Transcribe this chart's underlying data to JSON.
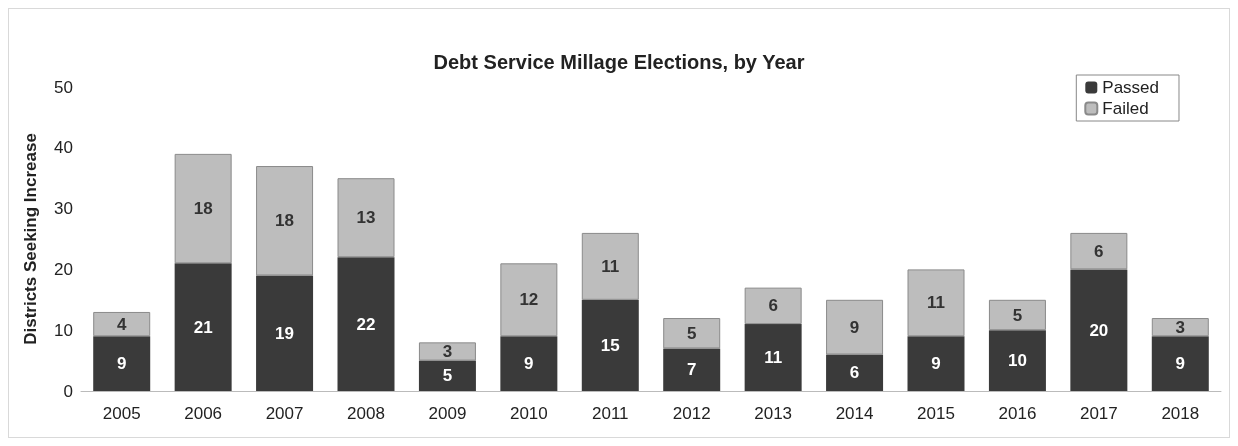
{
  "chart_data": {
    "type": "bar",
    "title": "Debt Service Millage Elections, by Year",
    "ylabel": "Districts Seeking Increase",
    "categories": [
      "2005",
      "2006",
      "2007",
      "2008",
      "2009",
      "2010",
      "2011",
      "2012",
      "2013",
      "2014",
      "2015",
      "2016",
      "2017",
      "2018"
    ],
    "series": [
      {
        "name": "Passed",
        "color": "#3a3a3a",
        "values": [
          9,
          21,
          19,
          22,
          5,
          9,
          15,
          7,
          11,
          6,
          9,
          10,
          20,
          9
        ]
      },
      {
        "name": "Failed",
        "color": "#bdbdbd",
        "values": [
          4,
          18,
          18,
          13,
          3,
          12,
          11,
          5,
          6,
          9,
          11,
          5,
          6,
          3
        ]
      }
    ],
    "stacked": true,
    "ylim": [
      0,
      50
    ],
    "yticks": [
      0,
      10,
      20,
      30,
      40,
      50
    ],
    "grid": false,
    "legend": "top right",
    "data_labels": true
  }
}
